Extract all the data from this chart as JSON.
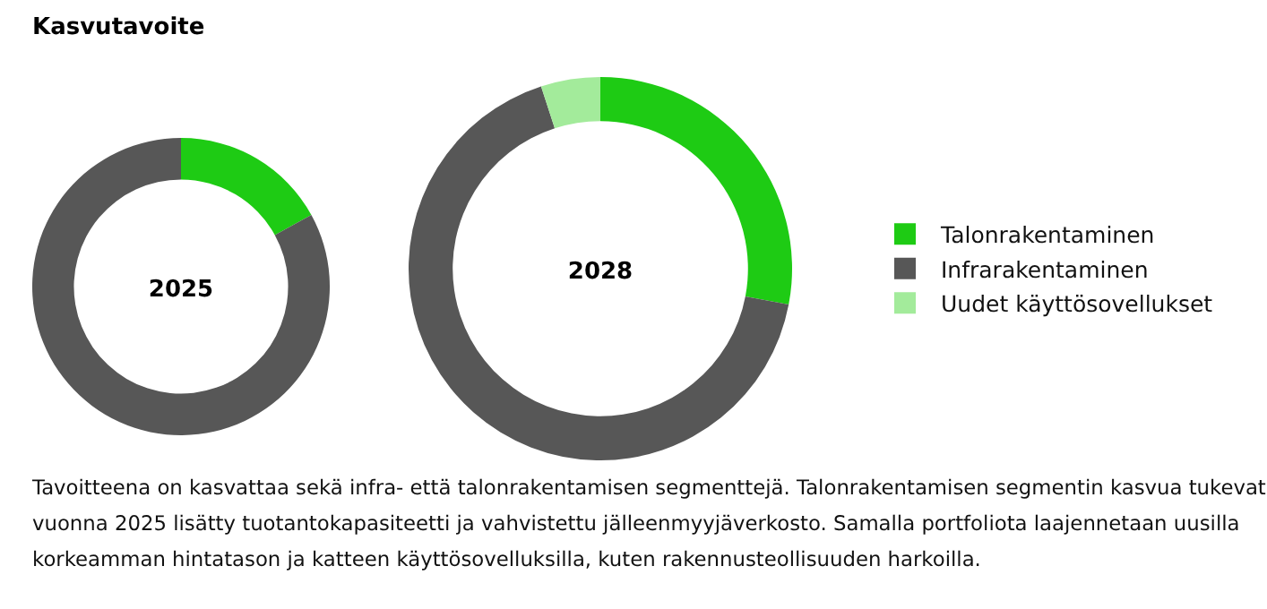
{
  "chart_data": [
    {
      "type": "donut",
      "title": "2025",
      "annotations": [
        "Kasvutavoite"
      ],
      "categories": [
        null,
        null
      ],
      "values": [
        17,
        83
      ],
      "colors": [
        "#1ecb14",
        "#575757"
      ],
      "legend": false
    },
    {
      "type": "donut",
      "title": "2028",
      "categories": [
        "Talonrakentaminen",
        "Infrarakentaminen",
        "Uudet käyttösovellukset"
      ],
      "values": [
        28,
        67,
        5
      ],
      "colors": [
        "#1ecb14",
        "#575757",
        "#a3eb9b"
      ],
      "legend": "right",
      "annotations": [
        "Tavoitteena on kasvattaa sekä infra- että talonrakentamisen segmenttejä. Talonrakentamisen segmentin kasvua tukevat vuonna 2025 lisätty tuotantokapasiteetti ja vahvistettu jälleenmyyjäverkosto. Samalla portfoliota laajennetaan uusilla korkeamman hintatason ja katteen käyttösovelluksilla, kuten rakennusteollisuuden harkoilla."
      ]
    }
  ]
}
